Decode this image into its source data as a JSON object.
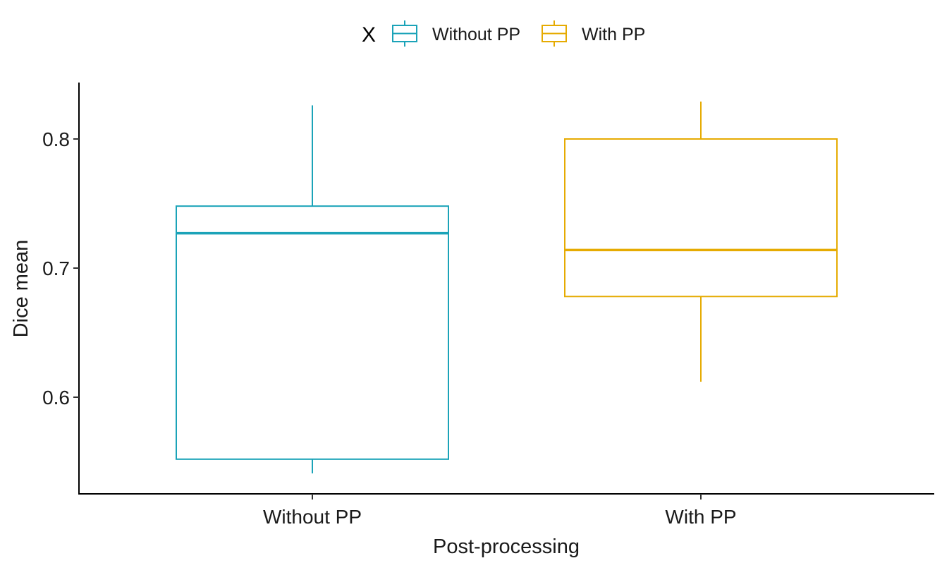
{
  "chart_data": {
    "type": "boxplot",
    "xlabel": "Post-processing",
    "ylabel": "Dice mean",
    "ylim": [
      0.535,
      0.845
    ],
    "yticks": [
      0.6,
      0.7,
      0.8
    ],
    "ytick_labels": [
      "0.6",
      "0.7",
      "0.8"
    ],
    "categories": [
      "Without PP",
      "With PP"
    ],
    "legend": {
      "title": "X",
      "position": "top",
      "entries": [
        "Without PP",
        "With PP"
      ]
    },
    "series": [
      {
        "name": "Without PP",
        "color": "#1ba3b8",
        "whisker_low": 0.541,
        "q1": 0.552,
        "median": 0.727,
        "q3": 0.748,
        "whisker_high": 0.826
      },
      {
        "name": "With PP",
        "color": "#e6ab02",
        "whisker_low": 0.612,
        "q1": 0.678,
        "median": 0.714,
        "q3": 0.8,
        "whisker_high": 0.829
      }
    ],
    "grid": false
  }
}
